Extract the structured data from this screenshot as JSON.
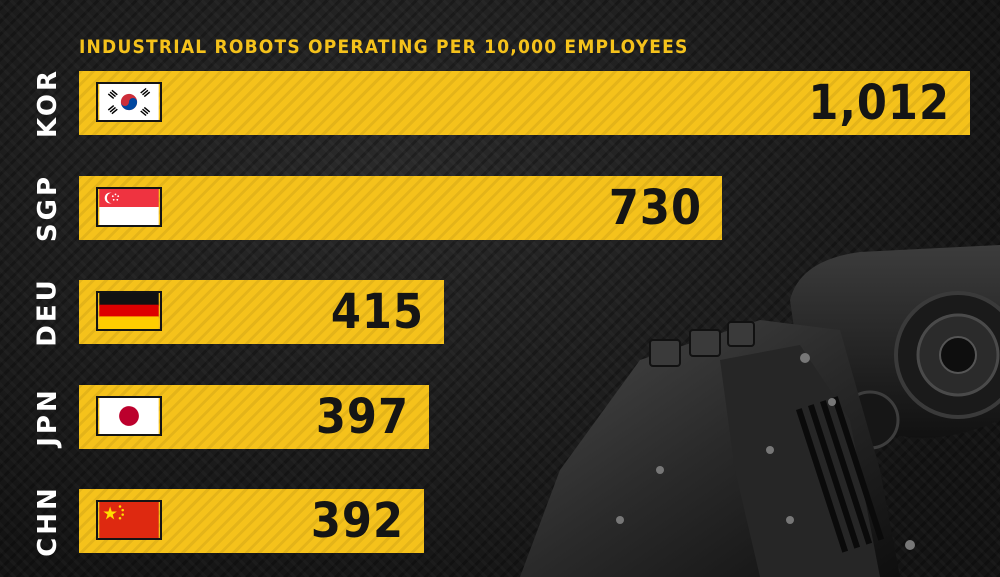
{
  "chart_data": {
    "type": "bar",
    "orientation": "horizontal",
    "title": "INDUSTRIAL ROBOTS OPERATING PER 10,000 EMPLOYEES",
    "categories": [
      "KOR",
      "SGP",
      "DEU",
      "JPN",
      "CHN"
    ],
    "values": [
      1012,
      730,
      415,
      397,
      392
    ],
    "value_labels": [
      "1,012",
      "730",
      "415",
      "397",
      "392"
    ],
    "flag_icons": [
      "south-korea-flag-icon",
      "singapore-flag-icon",
      "germany-flag-icon",
      "japan-flag-icon",
      "china-flag-icon"
    ],
    "xlim": [
      0,
      1012
    ],
    "bar_color": "#f5c21b",
    "text_color": "#151515",
    "title_color": "#f5c21b",
    "label_color": "#ffffff",
    "background_color": "#1b1b1b",
    "grid": false,
    "legend": "none"
  }
}
